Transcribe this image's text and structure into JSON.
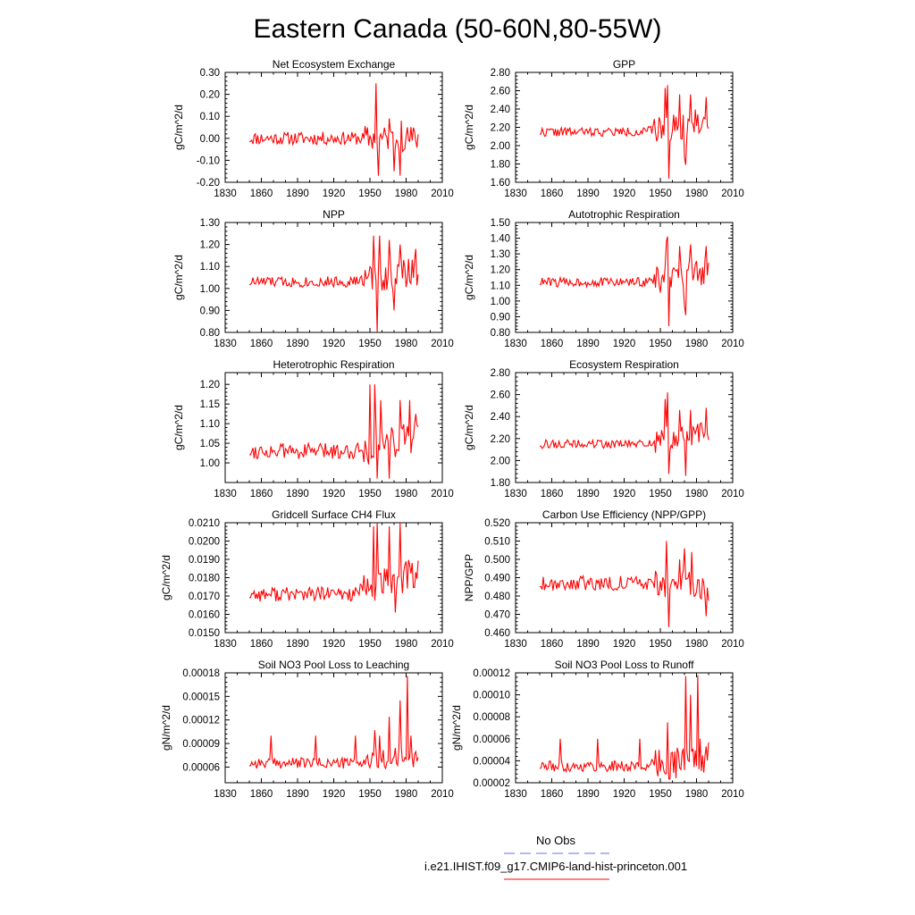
{
  "page": {
    "title": "Eastern Canada (50-60N,80-55W)"
  },
  "legend": {
    "items": [
      {
        "label": "No Obs",
        "color": "#6a6aff",
        "dash": true
      },
      {
        "label": "i.e21.IHIST.f09_g17.CMIP6-land-hist-princeton.001",
        "color": "#ff0000",
        "dash": false
      }
    ]
  },
  "colors": {
    "series": "#ff0000"
  },
  "chart_data": [
    {
      "type": "line",
      "title": "Net Ecosystem Exchange",
      "ylabel": "gC/m^2/d",
      "xlim": [
        1830,
        2010
      ],
      "ylim": [
        -0.2,
        0.3
      ],
      "xticks": [
        1830,
        1860,
        1890,
        1920,
        1950,
        1980,
        2010
      ],
      "yticks": [
        -0.2,
        -0.1,
        0.0,
        0.1,
        0.2,
        0.3
      ],
      "ytick_labels": [
        "-0.20",
        "-0.10",
        "0.00",
        "0.10",
        "0.20",
        "0.30"
      ],
      "series": [
        {
          "start": 1850,
          "end": 1990,
          "base": 0.0,
          "amp": 0.03,
          "late_amp": 0.06,
          "trend": 0.0,
          "seed": 11,
          "spikes": [
            [
              1955,
              0.25
            ],
            [
              1957,
              -0.17
            ],
            [
              1966,
              0.09
            ],
            [
              1970,
              -0.15
            ],
            [
              1975,
              -0.17
            ],
            [
              1976,
              0.08
            ]
          ]
        }
      ]
    },
    {
      "type": "line",
      "title": "GPP",
      "ylabel": "gC/m^2/d",
      "xlim": [
        1830,
        2010
      ],
      "ylim": [
        1.6,
        2.8
      ],
      "xticks": [
        1830,
        1860,
        1890,
        1920,
        1950,
        1980,
        2010
      ],
      "yticks": [
        1.6,
        1.8,
        2.0,
        2.2,
        2.4,
        2.6,
        2.8
      ],
      "ytick_labels": [
        "1.60",
        "1.80",
        "2.00",
        "2.20",
        "2.40",
        "2.60",
        "2.80"
      ],
      "series": [
        {
          "start": 1850,
          "end": 1990,
          "base": 2.15,
          "amp": 0.05,
          "late_amp": 0.15,
          "trend": 0.12,
          "seed": 22,
          "spikes": [
            [
              1954,
              2.63
            ],
            [
              1956,
              2.66
            ],
            [
              1957,
              1.64
            ],
            [
              1966,
              2.56
            ],
            [
              1970,
              1.87
            ],
            [
              1971,
              1.79
            ],
            [
              1975,
              2.56
            ],
            [
              1988,
              2.53
            ]
          ]
        }
      ]
    },
    {
      "type": "line",
      "title": "NPP",
      "ylabel": "gC/m^2/d",
      "xlim": [
        1830,
        2010
      ],
      "ylim": [
        0.8,
        1.3
      ],
      "xticks": [
        1830,
        1860,
        1890,
        1920,
        1950,
        1980,
        2010
      ],
      "yticks": [
        0.8,
        0.9,
        1.0,
        1.1,
        1.2,
        1.3
      ],
      "ytick_labels": [
        "0.80",
        "0.90",
        "1.00",
        "1.10",
        "1.20",
        "1.30"
      ],
      "series": [
        {
          "start": 1850,
          "end": 1990,
          "base": 1.03,
          "amp": 0.025,
          "late_amp": 0.07,
          "trend": 0.05,
          "seed": 33,
          "spikes": [
            [
              1953,
              1.24
            ],
            [
              1956,
              0.8
            ],
            [
              1958,
              1.24
            ],
            [
              1966,
              1.22
            ],
            [
              1970,
              0.9
            ],
            [
              1975,
              1.2
            ],
            [
              1988,
              1.18
            ]
          ]
        }
      ]
    },
    {
      "type": "line",
      "title": "Autotrophic Respiration",
      "ylabel": "gC/m^2/d",
      "xlim": [
        1830,
        2010
      ],
      "ylim": [
        0.8,
        1.5
      ],
      "xticks": [
        1830,
        1860,
        1890,
        1920,
        1950,
        1980,
        2010
      ],
      "yticks": [
        0.8,
        0.9,
        1.0,
        1.1,
        1.2,
        1.3,
        1.4,
        1.5
      ],
      "ytick_labels": [
        "0.80",
        "0.90",
        "1.00",
        "1.10",
        "1.20",
        "1.30",
        "1.40",
        "1.50"
      ],
      "series": [
        {
          "start": 1850,
          "end": 1990,
          "base": 1.12,
          "amp": 0.03,
          "late_amp": 0.09,
          "trend": 0.06,
          "seed": 44,
          "spikes": [
            [
              1955,
              1.38
            ],
            [
              1956,
              1.41
            ],
            [
              1957,
              0.84
            ],
            [
              1966,
              1.35
            ],
            [
              1970,
              0.97
            ],
            [
              1971,
              0.91
            ],
            [
              1975,
              1.36
            ],
            [
              1988,
              1.35
            ]
          ]
        }
      ]
    },
    {
      "type": "line",
      "title": "Heterotrophic Respiration",
      "ylabel": "gC/m^2/d",
      "xlim": [
        1830,
        2010
      ],
      "ylim": [
        0.95,
        1.23
      ],
      "xticks": [
        1830,
        1860,
        1890,
        1920,
        1950,
        1980,
        2010
      ],
      "yticks": [
        1.0,
        1.05,
        1.1,
        1.15,
        1.2
      ],
      "ytick_labels": [
        "1.00",
        "1.05",
        "1.10",
        "1.15",
        "1.20"
      ],
      "series": [
        {
          "start": 1850,
          "end": 1990,
          "base": 1.03,
          "amp": 0.02,
          "late_amp": 0.05,
          "trend": 0.05,
          "seed": 55,
          "spikes": [
            [
              1950,
              1.2
            ],
            [
              1954,
              1.2
            ],
            [
              1956,
              0.96
            ],
            [
              1959,
              1.16
            ],
            [
              1966,
              0.96
            ],
            [
              1975,
              1.16
            ],
            [
              1983,
              1.16
            ]
          ]
        }
      ]
    },
    {
      "type": "line",
      "title": "Ecosystem Respiration",
      "ylabel": "gC/m^2/d",
      "xlim": [
        1830,
        2010
      ],
      "ylim": [
        1.8,
        2.8
      ],
      "xticks": [
        1830,
        1860,
        1890,
        1920,
        1950,
        1980,
        2010
      ],
      "yticks": [
        1.8,
        2.0,
        2.2,
        2.4,
        2.6,
        2.8
      ],
      "ytick_labels": [
        "1.80",
        "2.00",
        "2.20",
        "2.40",
        "2.60",
        "2.80"
      ],
      "series": [
        {
          "start": 1850,
          "end": 1990,
          "base": 2.15,
          "amp": 0.04,
          "late_amp": 0.12,
          "trend": 0.1,
          "seed": 66,
          "spikes": [
            [
              1954,
              2.56
            ],
            [
              1956,
              2.62
            ],
            [
              1957,
              1.88
            ],
            [
              1966,
              2.46
            ],
            [
              1971,
              1.86
            ],
            [
              1975,
              2.46
            ],
            [
              1988,
              2.48
            ]
          ]
        }
      ]
    },
    {
      "type": "line",
      "title": "Gridcell Surface CH4 Flux",
      "ylabel": "gC/m^2/d",
      "xlim": [
        1830,
        2010
      ],
      "ylim": [
        0.015,
        0.021
      ],
      "xticks": [
        1830,
        1860,
        1890,
        1920,
        1950,
        1980,
        2010
      ],
      "yticks": [
        0.015,
        0.016,
        0.017,
        0.018,
        0.019,
        0.02,
        0.021
      ],
      "ytick_labels": [
        "0.0150",
        "0.0160",
        "0.0170",
        "0.0180",
        "0.0190",
        "0.0200",
        "0.0210"
      ],
      "series": [
        {
          "start": 1850,
          "end": 1990,
          "base": 0.0171,
          "amp": 0.0004,
          "late_amp": 0.0009,
          "trend": 0.0012,
          "seed": 77,
          "spikes": [
            [
              1953,
              0.0208
            ],
            [
              1956,
              0.021
            ],
            [
              1960,
              0.0172
            ],
            [
              1966,
              0.0208
            ],
            [
              1971,
              0.0161
            ],
            [
              1975,
              0.021
            ],
            [
              1988,
              0.0183
            ]
          ]
        }
      ]
    },
    {
      "type": "line",
      "title": "Carbon Use Efficiency (NPP/GPP)",
      "ylabel": "NPP/GPP",
      "xlim": [
        1830,
        2010
      ],
      "ylim": [
        0.46,
        0.52
      ],
      "xticks": [
        1830,
        1860,
        1890,
        1920,
        1950,
        1980,
        2010
      ],
      "yticks": [
        0.46,
        0.47,
        0.48,
        0.49,
        0.5,
        0.51,
        0.52
      ],
      "ytick_labels": [
        "0.460",
        "0.470",
        "0.480",
        "0.490",
        "0.500",
        "0.510",
        "0.520"
      ],
      "series": [
        {
          "start": 1850,
          "end": 1990,
          "base": 0.487,
          "amp": 0.004,
          "late_amp": 0.008,
          "trend": -0.002,
          "seed": 88,
          "spikes": [
            [
              1955,
              0.51
            ],
            [
              1957,
              0.463
            ],
            [
              1966,
              0.5
            ],
            [
              1970,
              0.506
            ],
            [
              1976,
              0.504
            ],
            [
              1988,
              0.469
            ]
          ]
        }
      ]
    },
    {
      "type": "line",
      "title": "Soil NO3 Pool Loss to Leaching",
      "ylabel": "gN/m^2/d",
      "xlim": [
        1830,
        2010
      ],
      "ylim": [
        4e-05,
        0.00018
      ],
      "xticks": [
        1830,
        1860,
        1890,
        1920,
        1950,
        1980,
        2010
      ],
      "yticks": [
        6e-05,
        9e-05,
        0.00012,
        0.00015,
        0.00018
      ],
      "ytick_labels": [
        "0.00006",
        "0.00009",
        "0.00012",
        "0.00015",
        "0.00018"
      ],
      "series": [
        {
          "start": 1850,
          "end": 1990,
          "base": 6.5e-05,
          "amp": 7e-06,
          "late_amp": 1.5e-05,
          "trend": 8e-06,
          "seed": 99,
          "spikes": [
            [
              1868,
              0.0001
            ],
            [
              1905,
              0.0001
            ],
            [
              1938,
              0.0001
            ],
            [
              1954,
              0.000107
            ],
            [
              1958,
              0.0001
            ],
            [
              1966,
              0.000124
            ],
            [
              1975,
              0.000145
            ],
            [
              1981,
              0.000176
            ],
            [
              1984,
              0.0001
            ],
            [
              1986,
              6e-05
            ]
          ]
        }
      ]
    },
    {
      "type": "line",
      "title": "Soil NO3 Pool Loss to Runoff",
      "ylabel": "gN/m^2/d",
      "xlim": [
        1830,
        2010
      ],
      "ylim": [
        2e-05,
        0.00012
      ],
      "xticks": [
        1830,
        1860,
        1890,
        1920,
        1950,
        1980,
        2010
      ],
      "yticks": [
        2e-05,
        4e-05,
        6e-05,
        8e-05,
        0.0001,
        0.00012
      ],
      "ytick_labels": [
        "0.00002",
        "0.00004",
        "0.00006",
        "0.00008",
        "0.00010",
        "0.00012"
      ],
      "series": [
        {
          "start": 1850,
          "end": 1990,
          "base": 3.5e-05,
          "amp": 5e-06,
          "late_amp": 1.5e-05,
          "trend": 8e-06,
          "seed": 111,
          "spikes": [
            [
              1867,
              6e-05
            ],
            [
              1898,
              6e-05
            ],
            [
              1933,
              6e-05
            ],
            [
              1956,
              7.5e-05
            ],
            [
              1971,
              0.000117
            ],
            [
              1975,
              0.0001
            ],
            [
              1981,
              0.000118
            ],
            [
              1983,
              6e-05
            ],
            [
              1985,
              4.5e-05
            ]
          ]
        }
      ]
    }
  ]
}
